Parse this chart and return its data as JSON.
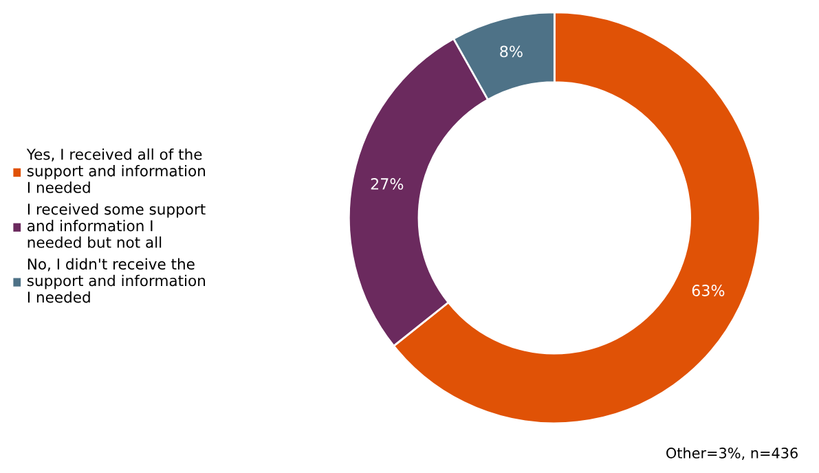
{
  "chart_data": {
    "type": "donut",
    "categories": [
      "Yes, I received all of the\nsupport and information\nI needed",
      "I received some support\nand information I\nneeded but not all",
      "No, I didn't receive the\nsupport and information\nI needed"
    ],
    "values": [
      63,
      27,
      8
    ],
    "value_labels": [
      "63%",
      "27%",
      "8%"
    ],
    "colors": [
      "#e05206",
      "#6b2a5e",
      "#4e7287"
    ],
    "legend": "left",
    "annotations": [
      "Other=3%, n=436"
    ]
  }
}
